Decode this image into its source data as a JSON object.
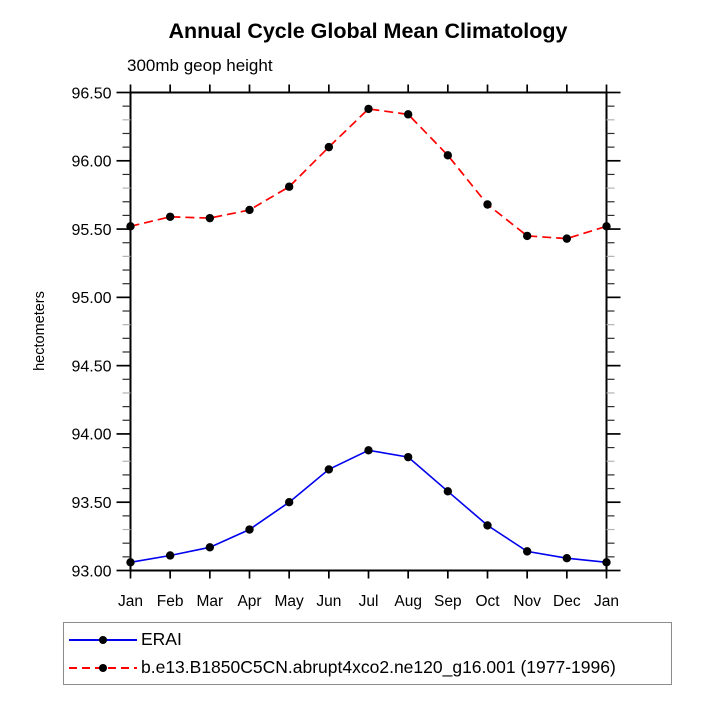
{
  "chart_data": {
    "type": "line",
    "title": "Annual Cycle Global Mean Climatology",
    "subtitle": "300mb geop height",
    "ylabel": "hectometers",
    "categories": [
      "Jan",
      "Feb",
      "Mar",
      "Apr",
      "May",
      "Jun",
      "Jul",
      "Aug",
      "Sep",
      "Oct",
      "Nov",
      "Dec",
      "Jan"
    ],
    "ylim": [
      93.0,
      96.5
    ],
    "y_major_step": 0.5,
    "y_minor_step": 0.1,
    "y_tick_labels": [
      "93.00",
      "93.50",
      "94.00",
      "94.50",
      "95.00",
      "95.50",
      "96.00",
      "96.50"
    ],
    "grid": false,
    "legend_position": "bottom-left-box",
    "axis_color": "#000000",
    "minor_tick_color": "#2e2e2e",
    "minor_tick_light_color": "#b3b3b3",
    "marker_color": "#000000",
    "series": [
      {
        "name": "ERAI",
        "color": "#0000ee",
        "dash": "solid",
        "values": [
          93.06,
          93.11,
          93.17,
          93.3,
          93.5,
          93.74,
          93.88,
          93.83,
          93.58,
          93.33,
          93.14,
          93.09,
          93.06
        ]
      },
      {
        "name": "b.e13.B1850C5CN.abrupt4xco2.ne120_g16.001 (1977-1996)",
        "color": "#ff0000",
        "dash": "dashed",
        "values": [
          95.52,
          95.59,
          95.58,
          95.64,
          95.81,
          96.1,
          96.38,
          96.34,
          96.04,
          95.68,
          95.45,
          95.43,
          95.52
        ]
      }
    ]
  }
}
